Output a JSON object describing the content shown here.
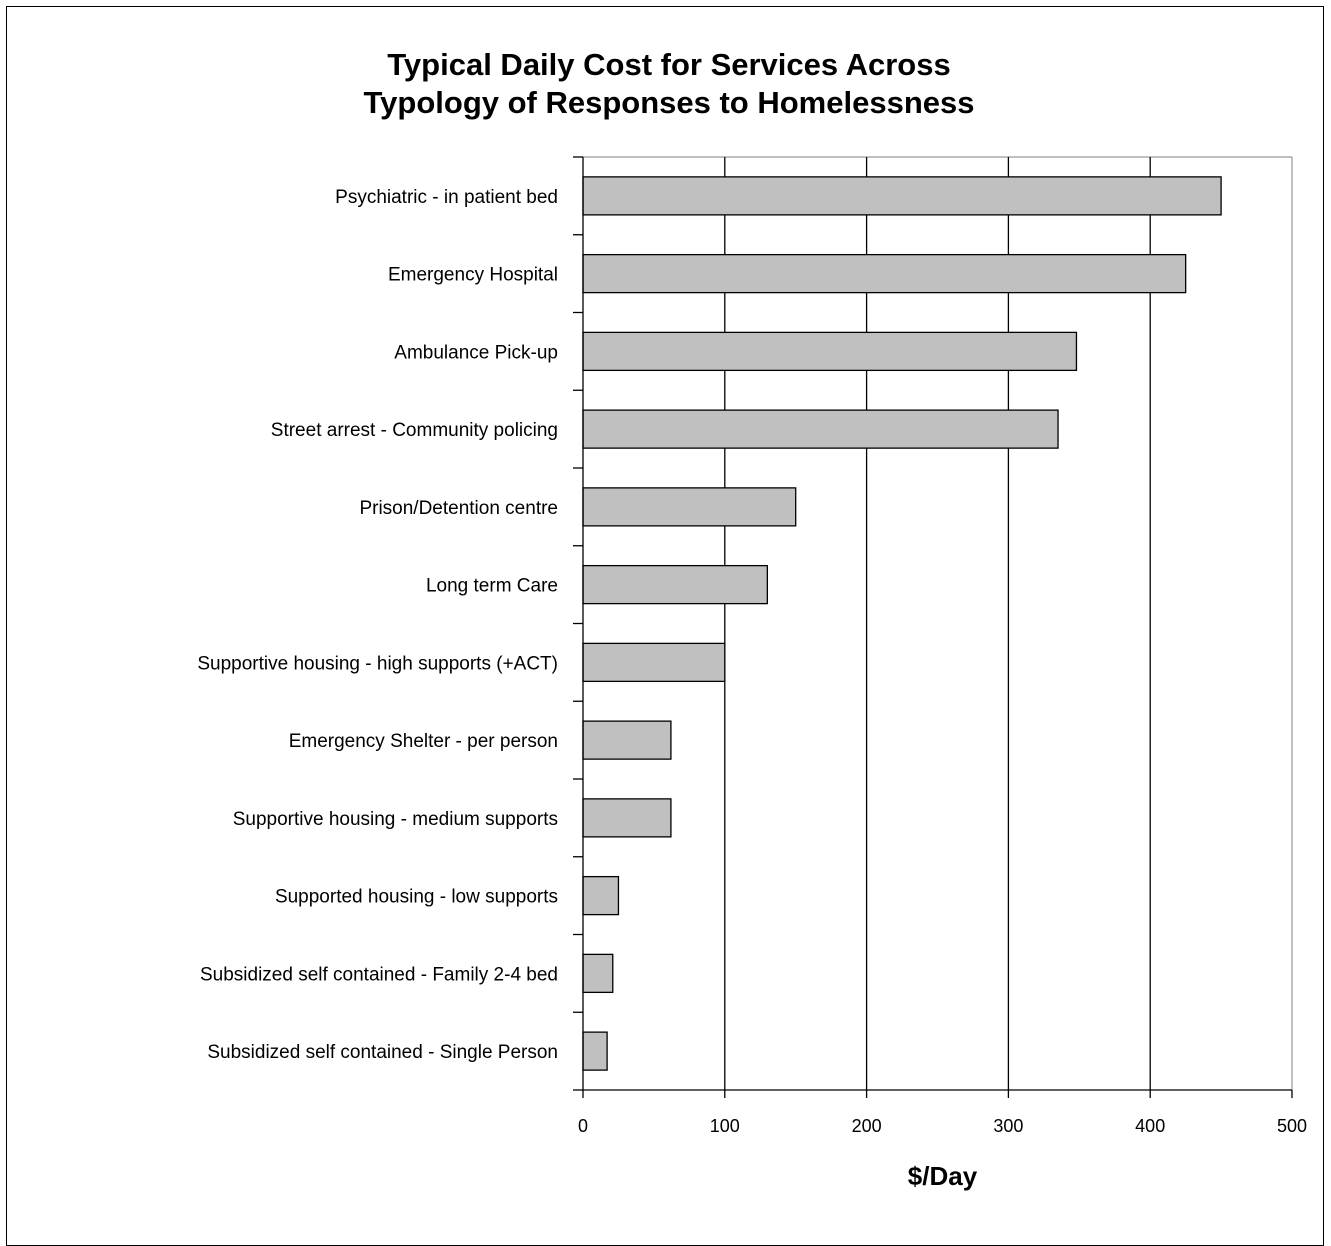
{
  "chart_data": {
    "type": "bar",
    "orientation": "horizontal",
    "title_lines": [
      "Typical Daily Cost for Services Across",
      "Typology of Responses to Homelessness"
    ],
    "xlabel": "$/Day",
    "ylabel": "",
    "xlim": [
      0,
      500
    ],
    "xticks": [
      "0",
      "100",
      "200",
      "300",
      "400",
      "500"
    ],
    "grid": "vertical",
    "legend": "none",
    "bar_color": "#c0c0c0",
    "categories": [
      "Psychiatric - in patient bed",
      "Emergency Hospital",
      "Ambulance Pick-up",
      "Street arrest - Community policing",
      "Prison/Detention centre",
      "Long term Care",
      "Supportive housing -  high supports (+ACT)",
      "Emergency Shelter - per person",
      "Supportive housing -  medium supports",
      "Supported housing -  low supports",
      "Subsidized self contained - Family 2-4 bed",
      "Subsidized self contained - Single Person"
    ],
    "values": [
      450,
      425,
      348,
      335,
      150,
      130,
      100,
      62,
      62,
      25,
      21,
      17
    ]
  }
}
